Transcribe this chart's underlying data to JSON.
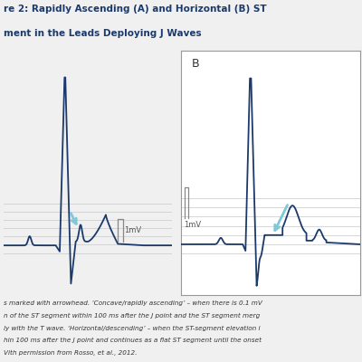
{
  "title_line1": "re 2: Rapidly Ascending (A) and Horizontal (B) ST",
  "title_line2": "ment in the Leads Deploying J Waves",
  "footer_lines": [
    "s marked with arrowhead. ‘Concave/rapidly ascending’ – when there is 0.1 mV",
    "n of the ST segment within 100 ms after the J point and the ST segment merg",
    "ly with the T wave. ‘Horizontal/descending’ – when the ST-segment elevation i",
    "hin 100 ms after the J point and continues as a flat ST segment until the onset",
    "Vith permission from Rosso, et al., 2012."
  ],
  "ecg_color": "#1b3a6b",
  "arrow_color": "#7ec8d8",
  "grid_color": "#c8c8c8",
  "bg_color": "#f0f0f0",
  "panel_bg": "white",
  "text_color": "#1b3a6b",
  "footer_color": "#333333",
  "cal_bar_color": "#888888"
}
